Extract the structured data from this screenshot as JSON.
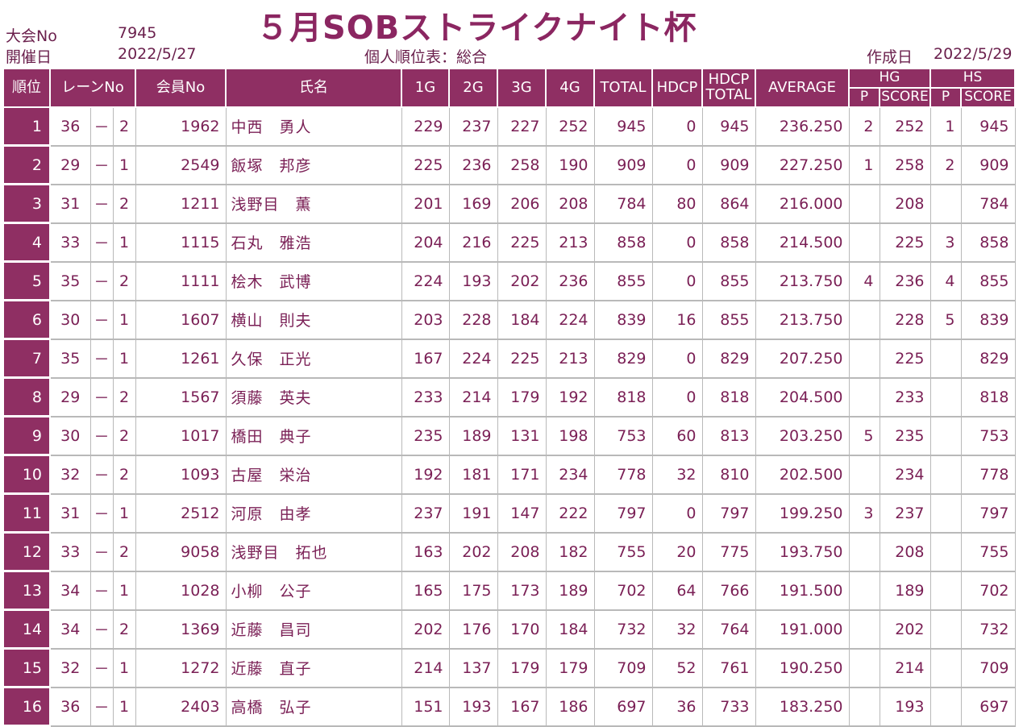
{
  "title": "５月SOBストライクナイト杯",
  "meta": {
    "tournament_label": "大会No",
    "tournament_no": "7945",
    "date_label": "開催日",
    "date": "2022/5/27",
    "ranking_label": "個人順位表：総合",
    "created_label": "作成日",
    "created_date": "2022/5/29"
  },
  "headers": {
    "rank": "順位",
    "lane": "レーンNo",
    "member": "会員No",
    "name": "氏名",
    "g1": "1G",
    "g2": "2G",
    "g3": "3G",
    "g4": "4G",
    "total": "TOTAL",
    "hdcp": "HDCP",
    "hdcp_total_1": "HDCP",
    "hdcp_total_2": "TOTAL",
    "average": "AVERAGE",
    "hg": "HG",
    "hs": "HS",
    "p": "P",
    "score": "SCORE"
  },
  "rows": [
    {
      "rank": "1",
      "lane": "36",
      "dash": "－",
      "sub": "2",
      "member": "1962",
      "name": "中西　勇人",
      "g1": "229",
      "g2": "237",
      "g3": "227",
      "g4": "252",
      "total": "945",
      "hdcp": "0",
      "hdcp_total": "945",
      "average": "236.250",
      "hg_p": "2",
      "hg_score": "252",
      "hs_p": "1",
      "hs_score": "945"
    },
    {
      "rank": "2",
      "lane": "29",
      "dash": "－",
      "sub": "1",
      "member": "2549",
      "name": "飯塚　邦彦",
      "g1": "225",
      "g2": "236",
      "g3": "258",
      "g4": "190",
      "total": "909",
      "hdcp": "0",
      "hdcp_total": "909",
      "average": "227.250",
      "hg_p": "1",
      "hg_score": "258",
      "hs_p": "2",
      "hs_score": "909"
    },
    {
      "rank": "3",
      "lane": "31",
      "dash": "－",
      "sub": "2",
      "member": "1211",
      "name": "浅野目　薫",
      "g1": "201",
      "g2": "169",
      "g3": "206",
      "g4": "208",
      "total": "784",
      "hdcp": "80",
      "hdcp_total": "864",
      "average": "216.000",
      "hg_p": "",
      "hg_score": "208",
      "hs_p": "",
      "hs_score": "784"
    },
    {
      "rank": "4",
      "lane": "33",
      "dash": "－",
      "sub": "1",
      "member": "1115",
      "name": "石丸　雅浩",
      "g1": "204",
      "g2": "216",
      "g3": "225",
      "g4": "213",
      "total": "858",
      "hdcp": "0",
      "hdcp_total": "858",
      "average": "214.500",
      "hg_p": "",
      "hg_score": "225",
      "hs_p": "3",
      "hs_score": "858"
    },
    {
      "rank": "5",
      "lane": "35",
      "dash": "－",
      "sub": "2",
      "member": "1111",
      "name": "桧木　武博",
      "g1": "224",
      "g2": "193",
      "g3": "202",
      "g4": "236",
      "total": "855",
      "hdcp": "0",
      "hdcp_total": "855",
      "average": "213.750",
      "hg_p": "4",
      "hg_score": "236",
      "hs_p": "4",
      "hs_score": "855"
    },
    {
      "rank": "6",
      "lane": "30",
      "dash": "－",
      "sub": "1",
      "member": "1607",
      "name": "横山　則夫",
      "g1": "203",
      "g2": "228",
      "g3": "184",
      "g4": "224",
      "total": "839",
      "hdcp": "16",
      "hdcp_total": "855",
      "average": "213.750",
      "hg_p": "",
      "hg_score": "228",
      "hs_p": "5",
      "hs_score": "839"
    },
    {
      "rank": "7",
      "lane": "35",
      "dash": "－",
      "sub": "1",
      "member": "1261",
      "name": "久保　正光",
      "g1": "167",
      "g2": "224",
      "g3": "225",
      "g4": "213",
      "total": "829",
      "hdcp": "0",
      "hdcp_total": "829",
      "average": "207.250",
      "hg_p": "",
      "hg_score": "225",
      "hs_p": "",
      "hs_score": "829"
    },
    {
      "rank": "8",
      "lane": "29",
      "dash": "－",
      "sub": "2",
      "member": "1567",
      "name": "須藤　英夫",
      "g1": "233",
      "g2": "214",
      "g3": "179",
      "g4": "192",
      "total": "818",
      "hdcp": "0",
      "hdcp_total": "818",
      "average": "204.500",
      "hg_p": "",
      "hg_score": "233",
      "hs_p": "",
      "hs_score": "818"
    },
    {
      "rank": "9",
      "lane": "30",
      "dash": "－",
      "sub": "2",
      "member": "1017",
      "name": "橋田　典子",
      "g1": "235",
      "g2": "189",
      "g3": "131",
      "g4": "198",
      "total": "753",
      "hdcp": "60",
      "hdcp_total": "813",
      "average": "203.250",
      "hg_p": "5",
      "hg_score": "235",
      "hs_p": "",
      "hs_score": "753"
    },
    {
      "rank": "10",
      "lane": "32",
      "dash": "－",
      "sub": "2",
      "member": "1093",
      "name": "古屋　栄治",
      "g1": "192",
      "g2": "181",
      "g3": "171",
      "g4": "234",
      "total": "778",
      "hdcp": "32",
      "hdcp_total": "810",
      "average": "202.500",
      "hg_p": "",
      "hg_score": "234",
      "hs_p": "",
      "hs_score": "778"
    },
    {
      "rank": "11",
      "lane": "31",
      "dash": "－",
      "sub": "1",
      "member": "2512",
      "name": "河原　由孝",
      "g1": "237",
      "g2": "191",
      "g3": "147",
      "g4": "222",
      "total": "797",
      "hdcp": "0",
      "hdcp_total": "797",
      "average": "199.250",
      "hg_p": "3",
      "hg_score": "237",
      "hs_p": "",
      "hs_score": "797"
    },
    {
      "rank": "12",
      "lane": "33",
      "dash": "－",
      "sub": "2",
      "member": "9058",
      "name": "浅野目　拓也",
      "g1": "163",
      "g2": "202",
      "g3": "208",
      "g4": "182",
      "total": "755",
      "hdcp": "20",
      "hdcp_total": "775",
      "average": "193.750",
      "hg_p": "",
      "hg_score": "208",
      "hs_p": "",
      "hs_score": "755"
    },
    {
      "rank": "13",
      "lane": "34",
      "dash": "－",
      "sub": "1",
      "member": "1028",
      "name": "小柳　公子",
      "g1": "165",
      "g2": "175",
      "g3": "173",
      "g4": "189",
      "total": "702",
      "hdcp": "64",
      "hdcp_total": "766",
      "average": "191.500",
      "hg_p": "",
      "hg_score": "189",
      "hs_p": "",
      "hs_score": "702"
    },
    {
      "rank": "14",
      "lane": "34",
      "dash": "－",
      "sub": "2",
      "member": "1369",
      "name": "近藤　昌司",
      "g1": "202",
      "g2": "176",
      "g3": "170",
      "g4": "184",
      "total": "732",
      "hdcp": "32",
      "hdcp_total": "764",
      "average": "191.000",
      "hg_p": "",
      "hg_score": "202",
      "hs_p": "",
      "hs_score": "732"
    },
    {
      "rank": "15",
      "lane": "32",
      "dash": "－",
      "sub": "1",
      "member": "1272",
      "name": "近藤　直子",
      "g1": "214",
      "g2": "137",
      "g3": "179",
      "g4": "179",
      "total": "709",
      "hdcp": "52",
      "hdcp_total": "761",
      "average": "190.250",
      "hg_p": "",
      "hg_score": "214",
      "hs_p": "",
      "hs_score": "709"
    },
    {
      "rank": "16",
      "lane": "36",
      "dash": "－",
      "sub": "1",
      "member": "2403",
      "name": "高橋　弘子",
      "g1": "151",
      "g2": "193",
      "g3": "167",
      "g4": "186",
      "total": "697",
      "hdcp": "36",
      "hdcp_total": "733",
      "average": "183.250",
      "hg_p": "",
      "hg_score": "193",
      "hs_p": "",
      "hs_score": "697"
    }
  ]
}
